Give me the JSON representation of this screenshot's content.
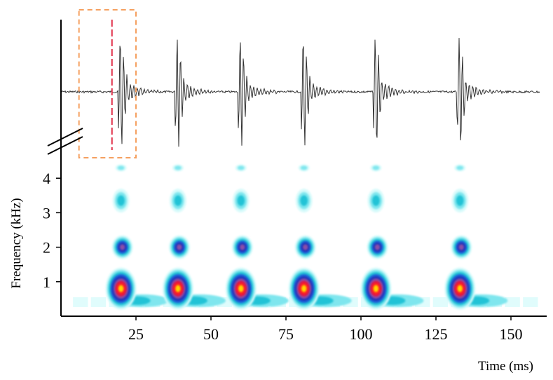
{
  "chart_data": {
    "type": "heatmap",
    "xlabel": "Time (ms)",
    "ylabel": "Frequency (kHz)",
    "xlim": [
      0,
      162
    ],
    "ylim": [
      0,
      4.5
    ],
    "x_ticks": [
      25,
      50,
      75,
      100,
      125,
      150
    ],
    "y_ticks": [
      1,
      2,
      3,
      4
    ],
    "grid": false,
    "colormap": [
      "#d8fbfb",
      "#7fe6ee",
      "#22c3d6",
      "#1e62d8",
      "#2030b8",
      "#8a4fa8",
      "#e01646",
      "#ff2020",
      "#ffd400"
    ],
    "pulse_times": [
      20,
      39,
      60,
      81,
      105,
      133
    ],
    "energy_bands": [
      {
        "frequency": 0.7,
        "intensity": 1.0
      },
      {
        "frequency": 2.0,
        "intensity": 0.62
      },
      {
        "frequency": 3.3,
        "intensity": 0.3
      },
      {
        "frequency": 4.3,
        "intensity": 0.15
      }
    ],
    "waveform": {
      "baseline_color": "#333333",
      "highlight_box_ms": [
        6,
        25
      ],
      "highlight_box_color": "#f5a060",
      "marker_ms": 17,
      "marker_color": "#e0304a"
    }
  }
}
